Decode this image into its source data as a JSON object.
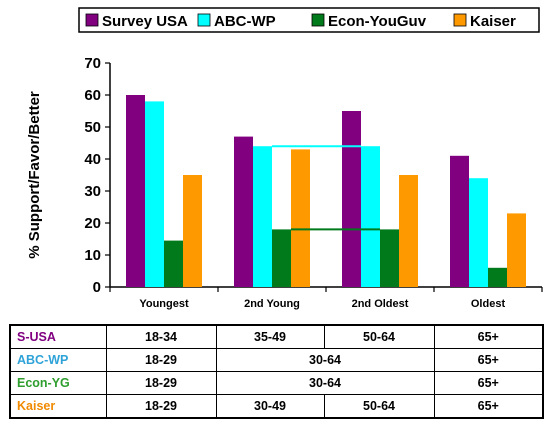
{
  "chart_data": {
    "type": "bar",
    "categories": [
      "Youngest",
      "2nd Young",
      "2nd Oldest",
      "Oldest"
    ],
    "series": [
      {
        "name": "Survey USA",
        "color": "#800080",
        "values": [
          60,
          47,
          55,
          41
        ]
      },
      {
        "name": "ABC-WP",
        "color": "#00FFFF",
        "values": [
          58,
          44,
          44,
          34
        ]
      },
      {
        "name": "Econ-YouGuv",
        "color": "#007A1A",
        "values": [
          14.5,
          18,
          18,
          6
        ]
      },
      {
        "name": "Kaiser",
        "color": "#FF9900",
        "values": [
          35,
          43,
          35,
          23
        ]
      }
    ],
    "ylabel": "% Support/Favor/Better",
    "ylim": [
      0,
      70
    ],
    "yticks": [
      0,
      10,
      20,
      30,
      40,
      50,
      60,
      70
    ],
    "grid": false,
    "legend_position": "top",
    "annotations": [
      {
        "type": "merged-segment",
        "series": "ABC-WP",
        "from": "2nd Young",
        "to": "2nd Oldest",
        "value": 44
      },
      {
        "type": "merged-segment",
        "series": "Econ-YouGuv",
        "from": "2nd Young",
        "to": "2nd Oldest",
        "value": 18
      }
    ]
  },
  "age_table": {
    "rows": [
      {
        "name": "S-USA",
        "color": "#800080",
        "cells": [
          {
            "text": "18-34",
            "span": 1
          },
          {
            "text": "35-49",
            "span": 1
          },
          {
            "text": "50-64",
            "span": 1
          },
          {
            "text": "65+",
            "span": 1
          }
        ]
      },
      {
        "name": "ABC-WP",
        "color": "#2FA3D8",
        "cells": [
          {
            "text": "18-29",
            "span": 1
          },
          {
            "text": "30-64",
            "span": 2
          },
          {
            "text": "65+",
            "span": 1
          }
        ]
      },
      {
        "name": "Econ-YG",
        "color": "#2E9E2E",
        "cells": [
          {
            "text": "18-29",
            "span": 1
          },
          {
            "text": "30-64",
            "span": 2
          },
          {
            "text": "65+",
            "span": 1
          }
        ]
      },
      {
        "name": "Kaiser",
        "color": "#F08A00",
        "cells": [
          {
            "text": "18-29",
            "span": 1
          },
          {
            "text": "30-49",
            "span": 1
          },
          {
            "text": "50-64",
            "span": 1
          },
          {
            "text": "65+",
            "span": 1
          }
        ]
      }
    ]
  }
}
